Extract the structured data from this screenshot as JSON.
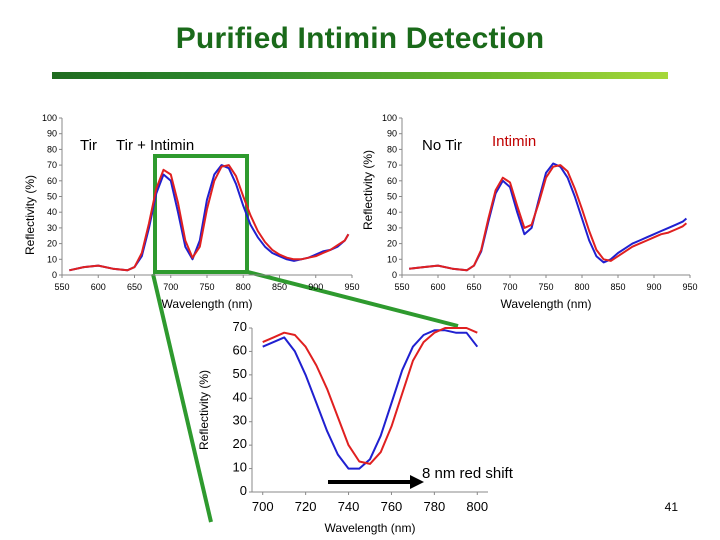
{
  "title": "Purified Intimin Detection",
  "page_number": "41",
  "colors": {
    "title": "#1a6a1a",
    "series_a": "#2020d0",
    "series_b": "#e02020",
    "box": "#2e9a2e"
  },
  "chart_data": [
    {
      "type": "line",
      "id": "left",
      "legend": [
        "Tir",
        "Tir + Intimin"
      ],
      "xlabel": "Wavelength (nm)",
      "ylabel": "Reflectivity (%)",
      "xlim": [
        550,
        950
      ],
      "ylim": [
        0,
        100
      ],
      "xticks": [
        550,
        600,
        650,
        700,
        750,
        800,
        850,
        900,
        950
      ],
      "yticks": [
        0,
        10,
        20,
        30,
        40,
        50,
        60,
        70,
        80,
        90,
        100
      ],
      "series": [
        {
          "name": "Tir",
          "color": "#2020d0",
          "x": [
            560,
            580,
            600,
            620,
            640,
            650,
            660,
            670,
            680,
            690,
            700,
            710,
            720,
            730,
            740,
            750,
            760,
            770,
            780,
            790,
            800,
            810,
            820,
            830,
            840,
            850,
            860,
            870,
            880,
            890,
            900,
            910,
            920,
            930,
            940,
            945
          ],
          "y": [
            3,
            5,
            6,
            4,
            3,
            5,
            12,
            30,
            52,
            64,
            60,
            40,
            18,
            10,
            22,
            48,
            64,
            70,
            68,
            58,
            44,
            32,
            24,
            18,
            14,
            12,
            10,
            9,
            10,
            11,
            13,
            15,
            16,
            18,
            22,
            26
          ]
        },
        {
          "name": "Tir + Intimin",
          "color": "#e02020",
          "x": [
            560,
            580,
            600,
            620,
            640,
            650,
            660,
            670,
            680,
            690,
            700,
            710,
            720,
            730,
            740,
            750,
            760,
            770,
            780,
            790,
            800,
            810,
            820,
            830,
            840,
            850,
            860,
            870,
            880,
            890,
            900,
            910,
            920,
            930,
            940,
            945
          ],
          "y": [
            3,
            5,
            6,
            4,
            3,
            5,
            14,
            33,
            55,
            67,
            64,
            46,
            22,
            11,
            18,
            42,
            60,
            69,
            70,
            63,
            50,
            38,
            28,
            21,
            16,
            13,
            11,
            10,
            10,
            11,
            12,
            14,
            16,
            19,
            22,
            26
          ]
        }
      ]
    },
    {
      "type": "line",
      "id": "right",
      "legend": [
        "No Tir",
        "Intimin"
      ],
      "xlabel": "Wavelength (nm)",
      "ylabel": "Reflectivity (%)",
      "xlim": [
        550,
        950
      ],
      "ylim": [
        0,
        100
      ],
      "xticks": [
        550,
        600,
        650,
        700,
        750,
        800,
        850,
        900,
        950
      ],
      "yticks": [
        0,
        10,
        20,
        30,
        40,
        50,
        60,
        70,
        80,
        90,
        100
      ],
      "series": [
        {
          "name": "No Tir",
          "color": "#2020d0",
          "x": [
            560,
            580,
            600,
            620,
            640,
            650,
            660,
            670,
            680,
            690,
            700,
            710,
            720,
            730,
            740,
            750,
            760,
            770,
            780,
            790,
            800,
            810,
            820,
            830,
            840,
            850,
            860,
            870,
            880,
            890,
            900,
            910,
            920,
            930,
            940,
            945
          ],
          "y": [
            4,
            5,
            6,
            4,
            3,
            6,
            15,
            34,
            52,
            60,
            56,
            40,
            26,
            30,
            48,
            65,
            71,
            69,
            62,
            50,
            36,
            22,
            12,
            8,
            10,
            14,
            17,
            20,
            22,
            24,
            26,
            28,
            30,
            32,
            34,
            36
          ]
        },
        {
          "name": "Intimin",
          "color": "#e02020",
          "x": [
            560,
            580,
            600,
            620,
            640,
            650,
            660,
            670,
            680,
            690,
            700,
            710,
            720,
            730,
            740,
            750,
            760,
            770,
            780,
            790,
            800,
            810,
            820,
            830,
            840,
            850,
            860,
            870,
            880,
            890,
            900,
            910,
            920,
            930,
            940,
            945
          ],
          "y": [
            4,
            5,
            6,
            4,
            3,
            6,
            16,
            36,
            54,
            62,
            59,
            44,
            30,
            32,
            46,
            62,
            69,
            70,
            66,
            55,
            42,
            28,
            16,
            10,
            9,
            12,
            15,
            18,
            20,
            22,
            24,
            26,
            27,
            29,
            31,
            33
          ]
        }
      ]
    },
    {
      "type": "line",
      "id": "inset",
      "xlabel": "Wavelength (nm)",
      "ylabel": "Reflectivity (%)",
      "xlim": [
        695,
        805
      ],
      "ylim": [
        0,
        70
      ],
      "xticks": [
        700,
        720,
        740,
        760,
        780,
        800
      ],
      "yticks": [
        0,
        10,
        20,
        30,
        40,
        50,
        60,
        70
      ],
      "annotation": "8 nm red shift",
      "series": [
        {
          "name": "Tir",
          "color": "#2020d0",
          "x": [
            700,
            705,
            710,
            715,
            720,
            725,
            730,
            735,
            740,
            745,
            750,
            755,
            760,
            765,
            770,
            775,
            780,
            785,
            790,
            795,
            800
          ],
          "y": [
            62,
            64,
            66,
            60,
            50,
            38,
            26,
            16,
            10,
            10,
            14,
            24,
            38,
            52,
            62,
            67,
            69,
            69,
            68,
            68,
            62
          ]
        },
        {
          "name": "Tir + Intimin",
          "color": "#e02020",
          "x": [
            700,
            705,
            710,
            715,
            720,
            725,
            730,
            735,
            740,
            745,
            750,
            755,
            760,
            765,
            770,
            775,
            780,
            785,
            790,
            795,
            800
          ],
          "y": [
            64,
            66,
            68,
            67,
            62,
            54,
            44,
            32,
            20,
            13,
            12,
            17,
            28,
            42,
            56,
            64,
            68,
            70,
            70,
            70,
            68
          ]
        }
      ]
    }
  ]
}
